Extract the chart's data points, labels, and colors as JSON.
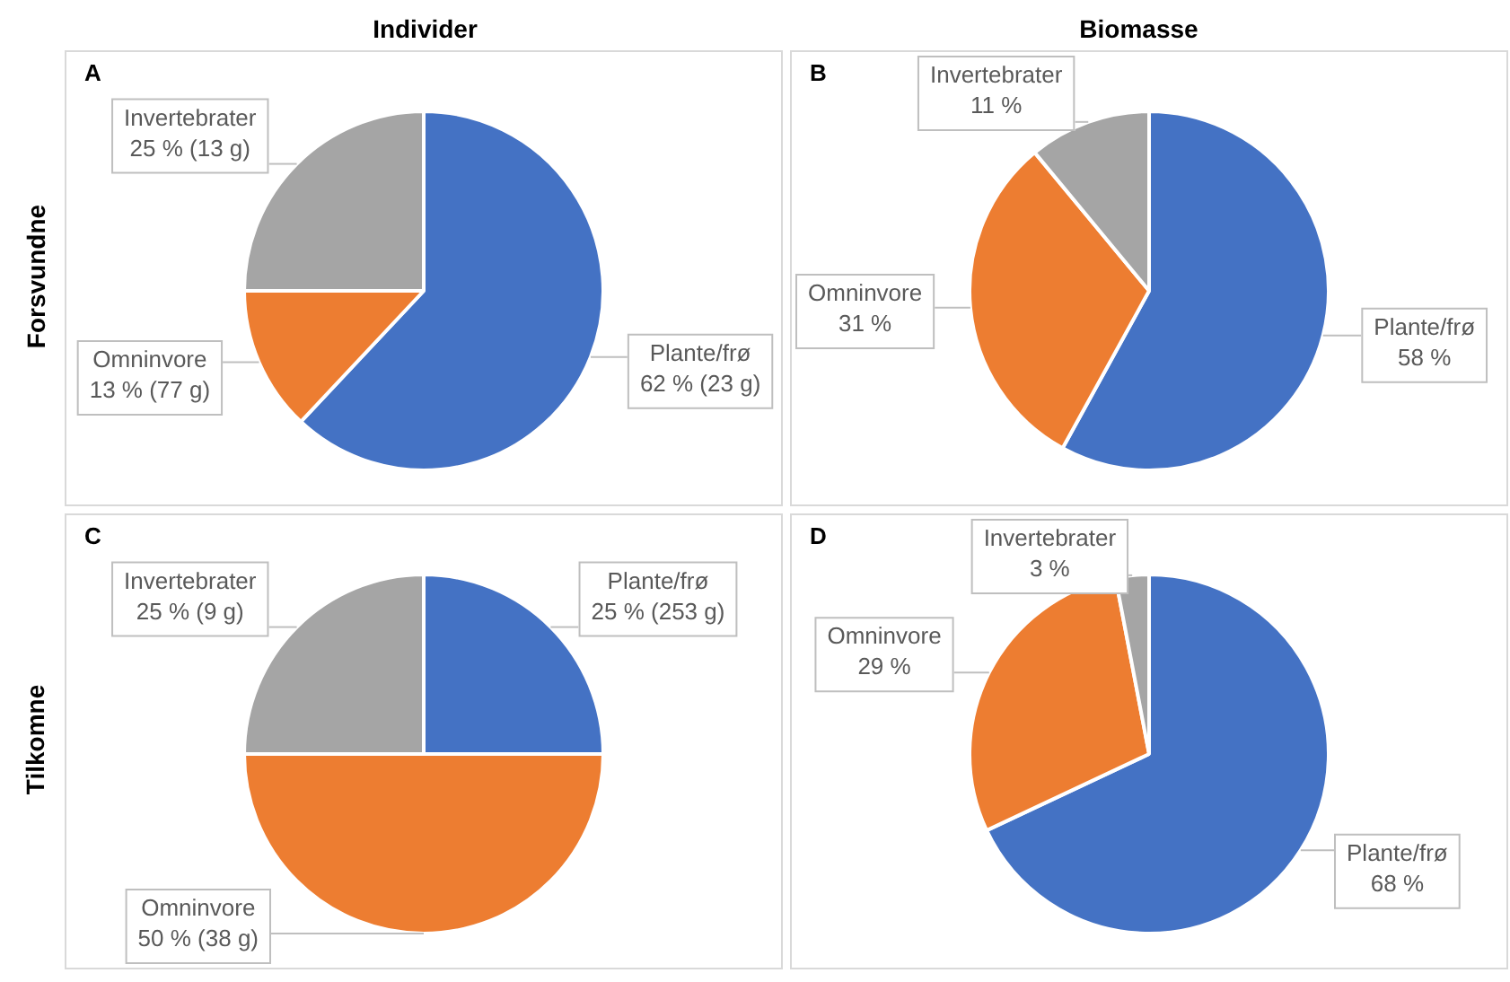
{
  "chart_data": [
    {
      "type": "pie",
      "title": "A",
      "annotations": [
        "Individer",
        "Forsvundne"
      ],
      "categories": [
        "Plante/frø",
        "Omninvore",
        "Invertebrater"
      ],
      "values": [
        62,
        13,
        25
      ],
      "value_labels": [
        "62 % (23 g)",
        "13 % (77 g)",
        "25 % (13 g)"
      ],
      "colors": [
        "#4472c4",
        "#ed7d31",
        "#a5a5a5"
      ]
    },
    {
      "type": "pie",
      "title": "B",
      "annotations": [
        "Biomasse"
      ],
      "categories": [
        "Plante/frø",
        "Omninvore",
        "Invertebrater"
      ],
      "values": [
        58,
        31,
        11
      ],
      "value_labels": [
        "58 %",
        "31 %",
        "11 %"
      ],
      "colors": [
        "#4472c4",
        "#ed7d31",
        "#a5a5a5"
      ]
    },
    {
      "type": "pie",
      "title": "C",
      "annotations": [
        "Tilkomne"
      ],
      "categories": [
        "Plante/frø",
        "Omninvore",
        "Invertebrater"
      ],
      "values": [
        25,
        50,
        25
      ],
      "value_labels": [
        "25 % (253 g)",
        "50 % (38 g)",
        "25 % (9 g)"
      ],
      "colors": [
        "#4472c4",
        "#ed7d31",
        "#a5a5a5"
      ]
    },
    {
      "type": "pie",
      "title": "D",
      "categories": [
        "Plante/frø",
        "Omninvore",
        "Invertebrater"
      ],
      "values": [
        68,
        29,
        3
      ],
      "value_labels": [
        "68 %",
        "29 %",
        "3 %"
      ],
      "colors": [
        "#4472c4",
        "#ed7d31",
        "#a5a5a5"
      ]
    }
  ]
}
